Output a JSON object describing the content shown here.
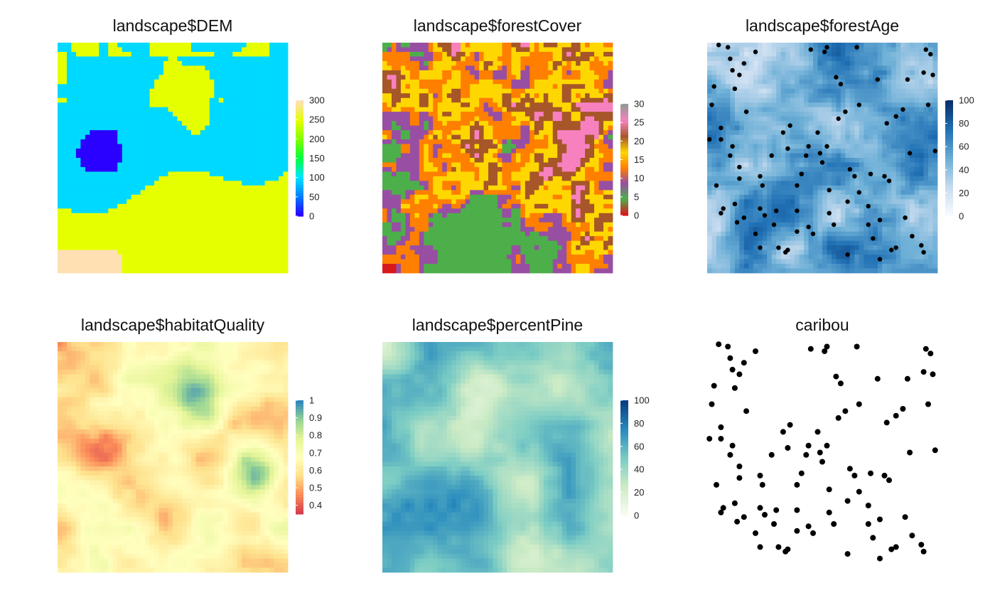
{
  "chart_data": [
    {
      "type": "heatmap",
      "title": "landscape$DEM",
      "palette": "topo",
      "colorbar": {
        "ticks": [
          "0",
          "50",
          "100",
          "150",
          "200",
          "250",
          "300"
        ],
        "range": [
          0,
          300
        ],
        "colors": [
          "#2a00ff",
          "#0080ff",
          "#00e5ff",
          "#00ff40",
          "#7fff00",
          "#e6ff00",
          "#ffe0b3"
        ]
      },
      "grid_cells": "50 x 50",
      "description_regions": [
        "dominant cyan (~70)",
        "yellow (~220) lower band",
        "yellow blob upper middle",
        "blue-violet patch left (~10)",
        "peach corner lower-left (~300)"
      ]
    },
    {
      "type": "heatmap",
      "title": "landscape$forestCover",
      "palette": "rainbow-categorical",
      "colorbar": {
        "ticks": [
          "0",
          "5",
          "10",
          "15",
          "20",
          "25",
          "30"
        ],
        "range": [
          0,
          30
        ],
        "colors": [
          "#d7191c",
          "#4daf4a",
          "#984ea3",
          "#ff7f00",
          "#ffd700",
          "#a65628",
          "#f781bf",
          "#999999"
        ]
      }
    },
    {
      "type": "heatmap",
      "title": "landscape$forestAge",
      "palette": "blues",
      "colorbar": {
        "ticks": [
          "0",
          "20",
          "40",
          "60",
          "80",
          "100"
        ],
        "range": [
          0,
          100
        ],
        "colors": [
          "#f7fbff",
          "#c6dbef",
          "#6baed6",
          "#2171b5",
          "#08306b"
        ]
      },
      "overlay": "caribou points"
    },
    {
      "type": "heatmap",
      "title": "landscape$habitatQuality",
      "palette": "spectral",
      "colorbar": {
        "ticks": [
          "0.4",
          "0.5",
          "0.6",
          "0.7",
          "0.8",
          "0.9",
          "1"
        ],
        "range": [
          0.35,
          1
        ],
        "colors": [
          "#d53e4f",
          "#fc8d59",
          "#fee08b",
          "#ffffbf",
          "#e6f598",
          "#99d594",
          "#3288bd"
        ]
      }
    },
    {
      "type": "heatmap",
      "title": "landscape$percentPine",
      "palette": "gnbu",
      "colorbar": {
        "ticks": [
          "0",
          "20",
          "40",
          "60",
          "80",
          "100"
        ],
        "range": [
          0,
          100
        ],
        "colors": [
          "#f7fcf0",
          "#ccebc5",
          "#7bccc4",
          "#2b8cbe",
          "#084081"
        ]
      }
    },
    {
      "type": "scatter",
      "title": "caribou",
      "points": [
        [
          0.1,
          0.07
        ],
        [
          0.21,
          0.04
        ],
        [
          0.16,
          0.09
        ],
        [
          0.45,
          0.03
        ],
        [
          0.51,
          0.04
        ],
        [
          0.56,
          0.15
        ],
        [
          0.58,
          0.18
        ],
        [
          0.74,
          0.16
        ],
        [
          0.87,
          0.16
        ],
        [
          0.95,
          0.03
        ],
        [
          0.97,
          0.05
        ],
        [
          0.94,
          0.13
        ],
        [
          0.82,
          0.32
        ],
        [
          0.85,
          0.29
        ],
        [
          0.99,
          0.47
        ],
        [
          0.88,
          0.48
        ],
        [
          0.62,
          0.55
        ],
        [
          0.64,
          0.58
        ],
        [
          0.77,
          0.58
        ],
        [
          0.79,
          0.6
        ],
        [
          0.7,
          0.79
        ],
        [
          0.72,
          0.85
        ],
        [
          0.8,
          0.9
        ],
        [
          0.82,
          0.89
        ],
        [
          0.93,
          0.88
        ],
        [
          0.94,
          0.91
        ],
        [
          0.53,
          0.74
        ],
        [
          0.55,
          0.79
        ],
        [
          0.44,
          0.8
        ],
        [
          0.46,
          0.83
        ],
        [
          0.39,
          0.82
        ],
        [
          0.35,
          0.9
        ],
        [
          0.31,
          0.89
        ],
        [
          0.34,
          0.91
        ],
        [
          0.23,
          0.89
        ],
        [
          0.16,
          0.76
        ],
        [
          0.12,
          0.7
        ],
        [
          0.07,
          0.72
        ],
        [
          0.06,
          0.74
        ],
        [
          0.13,
          0.78
        ],
        [
          0.04,
          0.62
        ],
        [
          0.14,
          0.59
        ],
        [
          0.23,
          0.58
        ],
        [
          0.24,
          0.62
        ],
        [
          0.28,
          0.49
        ],
        [
          0.35,
          0.46
        ],
        [
          0.44,
          0.45
        ],
        [
          0.52,
          0.45
        ],
        [
          0.49,
          0.48
        ],
        [
          0.41,
          0.57
        ],
        [
          0.39,
          0.62
        ],
        [
          0.53,
          0.64
        ],
        [
          0.61,
          0.69
        ],
        [
          0.66,
          0.65
        ],
        [
          0.71,
          0.57
        ],
        [
          0.7,
          0.71
        ],
        [
          0.96,
          0.27
        ],
        [
          0.98,
          0.14
        ],
        [
          0.05,
          0.01
        ],
        [
          0.09,
          0.02
        ],
        [
          0.11,
          0.12
        ],
        [
          0.02,
          0.27
        ],
        [
          0.01,
          0.42
        ],
        [
          0.06,
          0.42
        ],
        [
          0.11,
          0.45
        ],
        [
          0.14,
          0.54
        ],
        [
          0.23,
          0.72
        ],
        [
          0.3,
          0.73
        ],
        [
          0.39,
          0.73
        ],
        [
          0.48,
          0.39
        ],
        [
          0.57,
          0.33
        ],
        [
          0.6,
          0.3
        ],
        [
          0.66,
          0.27
        ],
        [
          0.78,
          0.35
        ],
        [
          0.75,
          0.77
        ],
        [
          0.86,
          0.76
        ],
        [
          0.17,
          0.3
        ],
        [
          0.06,
          0.37
        ],
        [
          0.14,
          0.14
        ],
        [
          0.33,
          0.39
        ],
        [
          0.36,
          0.36
        ],
        [
          0.12,
          0.2
        ],
        [
          0.1,
          0.49
        ],
        [
          0.03,
          0.19
        ],
        [
          0.43,
          0.49
        ],
        [
          0.5,
          0.52
        ],
        [
          0.25,
          0.75
        ],
        [
          0.29,
          0.79
        ],
        [
          0.21,
          0.83
        ],
        [
          0.61,
          0.92
        ],
        [
          0.75,
          0.94
        ],
        [
          0.89,
          0.84
        ],
        [
          0.52,
          0.02
        ],
        [
          0.65,
          0.02
        ]
      ]
    }
  ]
}
